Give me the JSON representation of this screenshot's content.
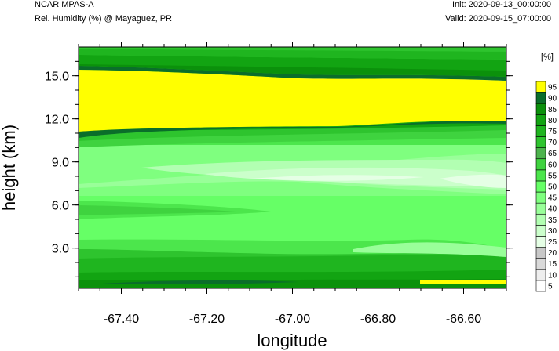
{
  "header": {
    "left_title": "NCAR MPAS-A",
    "left_subtitle": "Rel. Humidity (%) @ Mayaguez, PR",
    "right_init": "Init: 2020-09-13_00:00:00",
    "right_valid": "Valid: 2020-09-15_07:00:00"
  },
  "chart_data": {
    "type": "heatmap",
    "title": "Rel. Humidity (%) @ Mayaguez, PR",
    "xlabel": "longitude",
    "ylabel": "height (km)",
    "xlim": [
      -67.5,
      -66.5
    ],
    "ylim": [
      0.2,
      17.0
    ],
    "x_ticks": [
      -67.4,
      -67.2,
      -67.0,
      -66.8,
      -66.6
    ],
    "x_tick_labels": [
      "-67.40",
      "-67.20",
      "-67.00",
      "-66.80",
      "-66.60"
    ],
    "y_ticks": [
      3.0,
      6.0,
      9.0,
      12.0,
      15.0
    ],
    "y_tick_labels": [
      "3.0",
      "6.0",
      "9.0",
      "12.0",
      "15.0"
    ],
    "colorbar": {
      "unit_label": "[%]",
      "levels": [
        5,
        10,
        15,
        20,
        25,
        30,
        35,
        40,
        45,
        50,
        55,
        60,
        65,
        70,
        75,
        80,
        85,
        90,
        95
      ],
      "colors": [
        "#ffffff",
        "#eeeeee",
        "#d9d9d9",
        "#c8c8c8",
        "#e5ffe5",
        "#cbffcb",
        "#b2ffb2",
        "#99ff99",
        "#7fff7f",
        "#66ff66",
        "#4ce64c",
        "#3fd33f",
        "#4cb34c",
        "#2ec42e",
        "#1fb51f",
        "#12a412",
        "#0b910b",
        "#0a6e2a",
        "#ffff00"
      ]
    },
    "profile": {
      "heights_km": [
        0.3,
        0.6,
        1.0,
        1.5,
        2.0,
        2.5,
        3.0,
        3.5,
        4.5,
        5.0,
        5.5,
        6.0,
        6.5,
        7.0,
        7.5,
        8.0,
        8.5,
        9.0,
        9.5,
        10.0,
        10.5,
        11.0,
        14.5,
        15.0,
        15.5,
        16.0,
        16.5
      ],
      "rh_west": [
        85,
        82,
        80,
        76,
        75,
        72,
        68,
        60,
        58,
        62,
        62,
        60,
        57,
        55,
        50,
        48,
        52,
        58,
        63,
        72,
        85,
        97,
        97,
        90,
        82,
        78,
        75
      ],
      "rh_east": [
        96,
        82,
        78,
        76,
        70,
        66,
        65,
        63,
        55,
        55,
        53,
        52,
        48,
        45,
        42,
        45,
        50,
        54,
        58,
        66,
        78,
        90,
        97,
        90,
        82,
        78,
        75
      ]
    }
  }
}
